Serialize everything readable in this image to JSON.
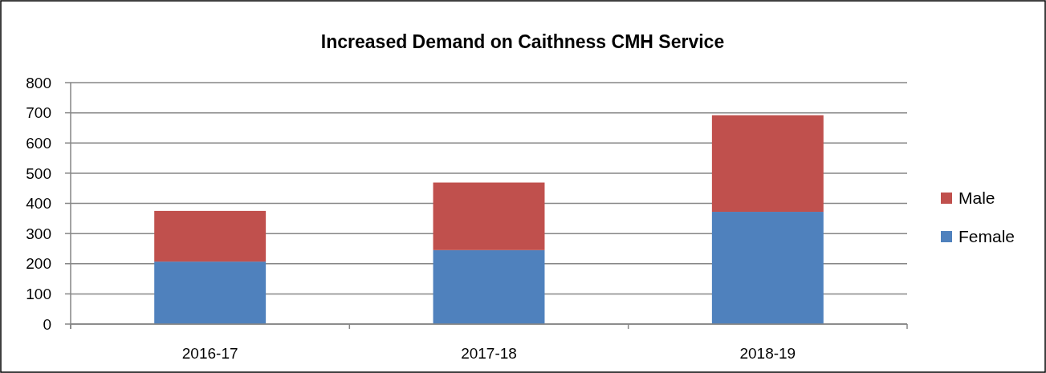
{
  "chart_data": {
    "type": "bar",
    "title": "Increased Demand on Caithness CMH Service",
    "categories": [
      "2016-17",
      "2017-18",
      "2018-19"
    ],
    "series": [
      {
        "name": "Female",
        "color": "#4f81bd",
        "values": [
          207,
          245,
          372
        ]
      },
      {
        "name": "Male",
        "color": "#c0504d",
        "values": [
          168,
          224,
          320
        ]
      }
    ],
    "stacked": true,
    "ylim": [
      0,
      800
    ],
    "yticks": [
      0,
      100,
      200,
      300,
      400,
      500,
      600,
      700,
      800
    ],
    "grid": "y",
    "legend": "right"
  }
}
